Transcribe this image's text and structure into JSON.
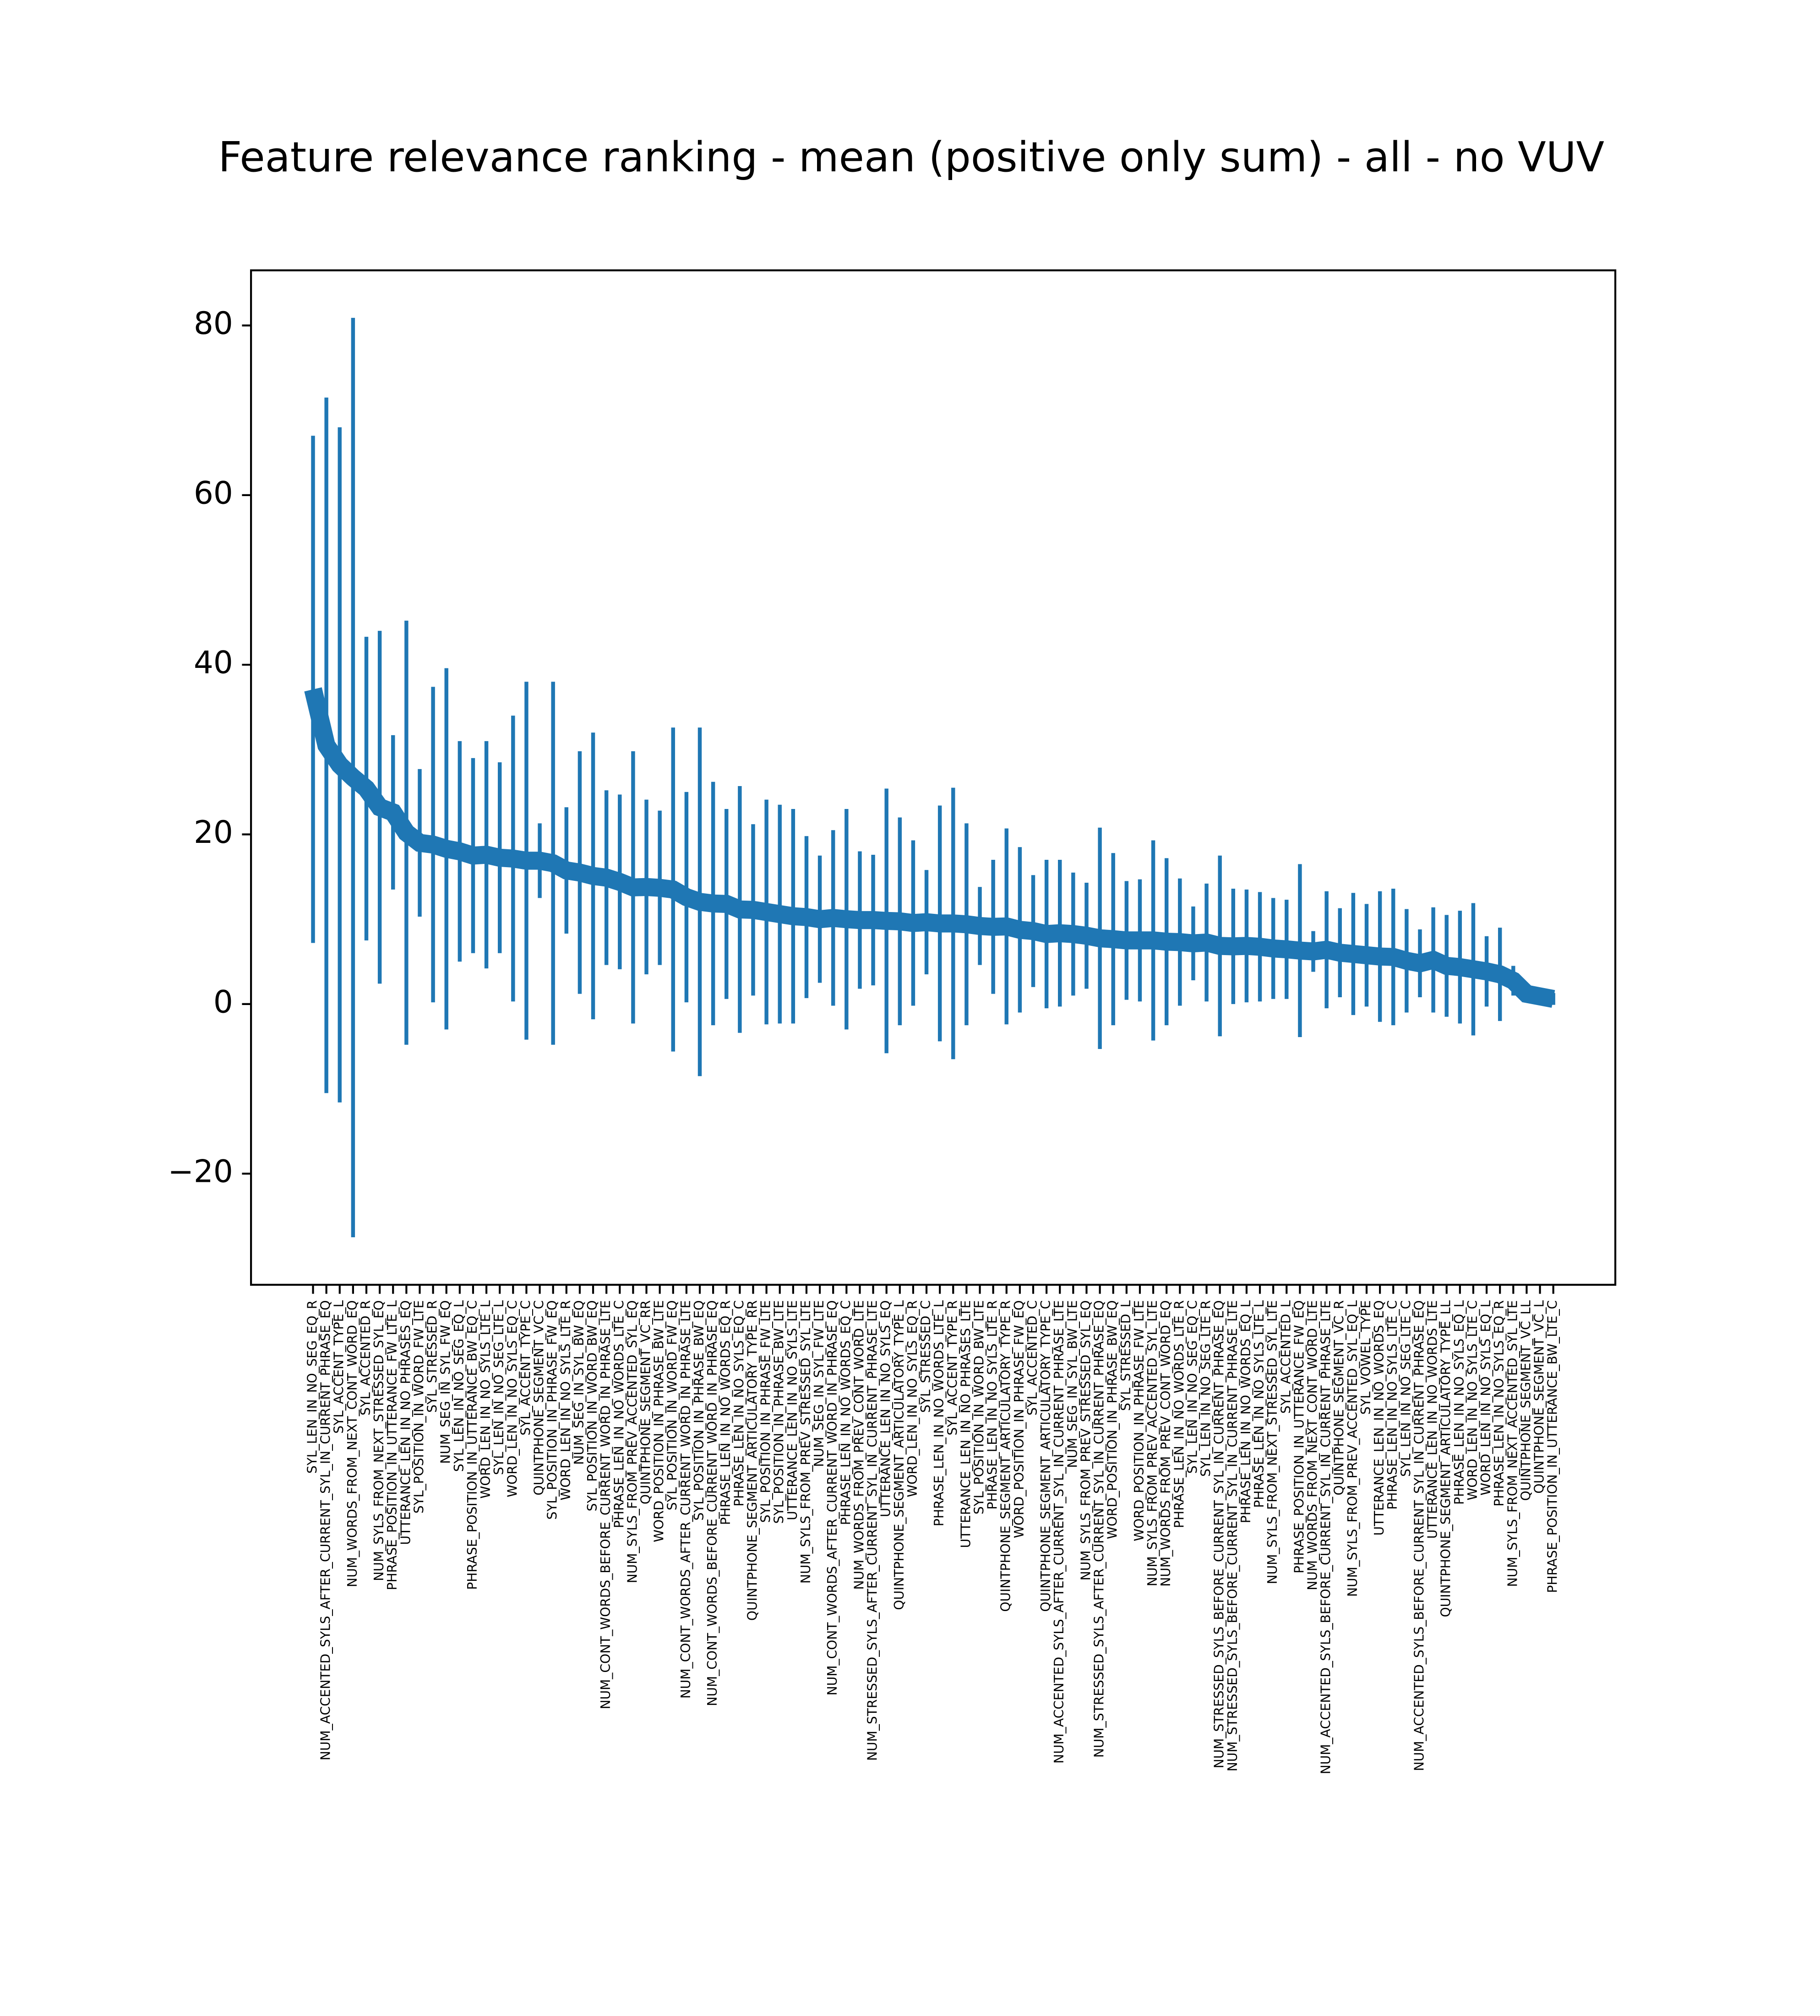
{
  "chart_data": {
    "type": "errorbar",
    "title": "Feature relevance ranking - mean (positive only sum) - all - no VUV",
    "color": "#1f77b4",
    "categories": [
      "SYL_LEN_IN_NO_SEG_EQ_R",
      "NUM_ACCENTED_SYLS_AFTER_CURRENT_SYL_IN_CURRENT_PHRASE_EQ",
      "SYL_ACCENT_TYPE_L",
      "NUM_WORDS_FROM_NEXT_CONT_WORD_EQ",
      "SYL_ACCENTED_R",
      "NUM_SYLS_FROM_NEXT_STRESSED_SYL_EQ",
      "PHRASE_POSITION_IN_UTTERANCE_FW_LTE_L",
      "UTTERANCE_LEN_IN_NO_PHRASES_EQ",
      "SYL_POSITION_IN_WORD_FW_LTE",
      "SYL_STRESSED_R",
      "NUM_SEG_IN_SYL_FW_EQ",
      "SYL_LEN_IN_NO_SEG_EQ_L",
      "PHRASE_POSITION_IN_UTTERANCE_BW_EQ_C",
      "WORD_LEN_IN_NO_SYLS_LTE_L",
      "SYL_LEN_IN_NO_SEG_LTE_L",
      "WORD_LEN_IN_NO_SYLS_EQ_C",
      "SYL_ACCENT_TYPE_C",
      "QUINTPHONE_SEGMENT_VC_C",
      "SYL_POSITION_IN_PHRASE_FW_EQ",
      "WORD_LEN_IN_NO_SYLS_LTE_R",
      "NUM_SEG_IN_SYL_BW_EQ",
      "SYL_POSITION_IN_WORD_BW_EQ",
      "NUM_CONT_WORDS_BEFORE_CURRENT_WORD_IN_PHRASE_LTE",
      "PHRASE_LEN_IN_NO_WORDS_LTE_C",
      "NUM_SYLS_FROM_PREV_ACCENTED_SYL_EQ",
      "QUINTPHONE_SEGMENT_VC_RR",
      "WORD_POSITION_IN_PHRASE_BW_LTE",
      "SYL_POSITION_IN_WORD_FW_EQ",
      "NUM_CONT_WORDS_AFTER_CURRENT_WORD_IN_PHRASE_LTE",
      "SYL_POSITION_IN_PHRASE_BW_EQ",
      "NUM_CONT_WORDS_BEFORE_CURRENT_WORD_IN_PHRASE_EQ",
      "PHRASE_LEN_IN_NO_WORDS_EQ_R",
      "PHRASE_LEN_IN_NO_SYLS_EQ_C",
      "QUINTPHONE_SEGMENT_ARTICULATORY_TYPE_RR",
      "SYL_POSITION_IN_PHRASE_FW_LTE",
      "SYL_POSITION_IN_PHRASE_BW_LTE",
      "UTTERANCE_LEN_IN_NO_SYLS_LTE",
      "NUM_SYLS_FROM_PREV_STRESSED_SYL_LTE",
      "NUM_SEG_IN_SYL_FW_LTE",
      "NUM_CONT_WORDS_AFTER_CURRENT_WORD_IN_PHRASE_EQ",
      "PHRASE_LEN_IN_NO_WORDS_EQ_C",
      "NUM_WORDS_FROM_PREV_CONT_WORD_LTE",
      "NUM_STRESSED_SYLS_AFTER_CURRENT_SYL_IN_CURRENT_PHRASE_LTE",
      "UTTERANCE_LEN_IN_NO_SYLS_EQ",
      "QUINTPHONE_SEGMENT_ARTICULATORY_TYPE_L",
      "WORD_LEN_IN_NO_SYLS_EQ_R",
      "SYL_STRESSED_C",
      "PHRASE_LEN_IN_NO_WORDS_LTE_L",
      "SYL_ACCENT_TYPE_R",
      "UTTERANCE_LEN_IN_NO_PHRASES_LTE",
      "SYL_POSITION_IN_WORD_BW_LTE",
      "PHRASE_LEN_IN_NO_SYLS_LTE_R",
      "QUINTPHONE_SEGMENT_ARTICULATORY_TYPE_R",
      "WORD_POSITION_IN_PHRASE_FW_EQ",
      "SYL_ACCENTED_C",
      "QUINTPHONE_SEGMENT_ARTICULATORY_TYPE_C",
      "NUM_ACCENTED_SYLS_AFTER_CURRENT_SYL_IN_CURRENT_PHRASE_LTE",
      "NUM_SEG_IN_SYL_BW_LTE",
      "NUM_SYLS_FROM_PREV_STRESSED_SYL_EQ",
      "NUM_STRESSED_SYLS_AFTER_CURRENT_SYL_IN_CURRENT_PHRASE_EQ",
      "WORD_POSITION_IN_PHRASE_BW_EQ",
      "SYL_STRESSED_L",
      "WORD_POSITION_IN_PHRASE_FW_LTE",
      "NUM_SYLS_FROM_PREV_ACCENTED_SYL_LTE",
      "NUM_WORDS_FROM_PREV_CONT_WORD_EQ",
      "PHRASE_LEN_IN_NO_WORDS_LTE_R",
      "SYL_LEN_IN_NO_SEG_EQ_C",
      "SYL_LEN_IN_NO_SEG_LTE_R",
      "NUM_STRESSED_SYLS_BEFORE_CURRENT_SYL_IN_CURRENT_PHRASE_EQ",
      "NUM_STRESSED_SYLS_BEFORE_CURRENT_SYL_IN_CURRENT_PHRASE_LTE",
      "PHRASE_LEN_IN_NO_WORDS_EQ_L",
      "PHRASE_LEN_IN_NO_SYLS_LTE_L",
      "NUM_SYLS_FROM_NEXT_STRESSED_SYL_LTE",
      "SYL_ACCENTED_L",
      "PHRASE_POSITION_IN_UTTERANCE_FW_EQ",
      "NUM_WORDS_FROM_NEXT_CONT_WORD_LTE",
      "NUM_ACCENTED_SYLS_BEFORE_CURRENT_SYL_IN_CURRENT_PHRASE_LTE",
      "QUINTPHONE_SEGMENT_VC_R",
      "NUM_SYLS_FROM_PREV_ACCENTED_SYL_EQ_L",
      "SYL_VOWEL_TYPE",
      "UTTERANCE_LEN_IN_NO_WORDS_EQ",
      "PHRASE_LEN_IN_NO_SYLS_LTE_C",
      "SYL_LEN_IN_NO_SEG_LTE_C",
      "NUM_ACCENTED_SYLS_BEFORE_CURRENT_SYL_IN_CURRENT_PHRASE_EQ",
      "UTTERANCE_LEN_IN_NO_WORDS_LTE",
      "QUINTPHONE_SEGMENT_ARTICULATORY_TYPE_LL",
      "PHRASE_LEN_IN_NO_SYLS_EQ_L",
      "WORD_LEN_IN_NO_SYLS_LTE_C",
      "WORD_LEN_IN_NO_SYLS_EQ_L",
      "PHRASE_LEN_IN_NO_SYLS_EQ_R",
      "NUM_SYLS_FROM_NEXT_ACCENTED_SYL_LTE",
      "QUINTPHONE_SEGMENT_VC_LL",
      "QUINTPHONE_SEGMENT_VC_L",
      "PHRASE_POSITION_IN_UTTERANCE_BW_LTE_C"
    ],
    "values": [
      37.1,
      30.5,
      28.2,
      26.7,
      25.4,
      23.2,
      22.6,
      20.2,
      19,
      18.8,
      18.3,
      18,
      17.5,
      17.6,
      17.25,
      17.15,
      16.9,
      16.9,
      16.6,
      15.75,
      15.5,
      15.1,
      14.9,
      14.4,
      13.75,
      13.8,
      13.7,
      13.5,
      12.6,
      12.05,
      11.85,
      11.8,
      11.15,
      11.1,
      10.85,
      10.6,
      10.35,
      10.25,
      10,
      10.15,
      10,
      9.9,
      9.9,
      9.8,
      9.75,
      9.55,
      9.65,
      9.5,
      9.5,
      9.4,
      9.2,
      9.1,
      9.15,
      8.75,
      8.6,
      8.25,
      8.35,
      8.25,
      8.05,
      7.75,
      7.65,
      7.5,
      7.5,
      7.5,
      7.35,
      7.3,
      7.15,
      7.25,
      6.85,
      6.8,
      6.85,
      6.75,
      6.55,
      6.45,
      6.3,
      6.2,
      6.4,
      6.05,
      5.9,
      5.75,
      5.6,
      5.55,
      5.1,
      4.8,
      5.2,
      4.5,
      4.35,
      4.1,
      3.85,
      3.5,
      2.75,
      1.2,
      0.9,
      0.6
    ],
    "errors": [
      29.9,
      41,
      39.8,
      54.2,
      17.9,
      20.8,
      9.1,
      25,
      8.7,
      18.6,
      21.3,
      13,
      11.5,
      13.4,
      11.25,
      16.85,
      21.1,
      4.4,
      21.4,
      7.45,
      14.3,
      16.9,
      10.3,
      10.3,
      16.05,
      10.3,
      9.1,
      19.1,
      12.4,
      20.55,
      14.35,
      11.2,
      14.55,
      10.1,
      13.25,
      12.9,
      12.65,
      9.55,
      7.5,
      10.35,
      13,
      8.1,
      7.7,
      15.6,
      12.25,
      9.75,
      6.15,
      13.9,
      16,
      11.9,
      4.6,
      7.9,
      11.55,
      9.75,
      6.6,
      8.75,
      8.65,
      7.25,
      6.25,
      13.05,
      10.15,
      7,
      7.2,
      11.8,
      9.85,
      7.5,
      4.35,
      6.95,
      10.65,
      6.8,
      6.65,
      6.45,
      5.95,
      5.85,
      10.2,
      2.4,
      6.9,
      5.25,
      7.2,
      6.05,
      7.7,
      8.05,
      6.1,
      4,
      6.2,
      6,
      6.65,
      7.8,
      4.15,
      5.5,
      1.75,
      1.0,
      0.8,
      0.7
    ],
    "ylim": [
      -33.1,
      86.5
    ],
    "yticks": [
      {
        "value": -20,
        "label": "−20"
      },
      0,
      20,
      40,
      60,
      80
    ]
  }
}
